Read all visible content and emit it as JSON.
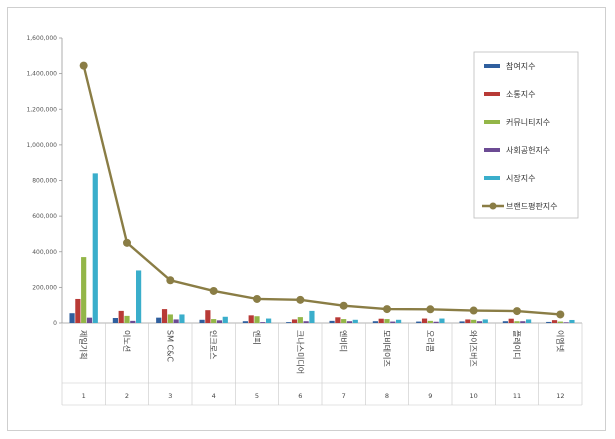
{
  "chart_data": {
    "type": "bar",
    "title": "",
    "xlabel": "",
    "ylabel": "",
    "ylim": [
      0,
      1600000
    ],
    "yticks": [
      "0",
      "200,000",
      "400,000",
      "600,000",
      "800,000",
      "1,000,000",
      "1,200,000",
      "1,400,000",
      "1,600,000"
    ],
    "categories": [
      "1",
      "2",
      "3",
      "4",
      "5",
      "6",
      "7",
      "8",
      "9",
      "10",
      "11",
      "12"
    ],
    "category_names": [
      "제일기획",
      "이노션",
      "SM C&C",
      "인크로스",
      "엔피",
      "크나스미디어",
      "엔비티",
      "모비데이즈",
      "오리콤",
      "와이즈버즈",
      "플레이디",
      "이엠넷"
    ],
    "legend_position": "right",
    "grid": false,
    "series": [
      {
        "name": "참여지수",
        "color": "#2f5f9e",
        "values": [
          55000,
          28000,
          30000,
          18000,
          10000,
          5000,
          12000,
          10000,
          8000,
          9000,
          10000,
          6000
        ]
      },
      {
        "name": "소통지수",
        "color": "#b83a36",
        "values": [
          135000,
          68000,
          78000,
          72000,
          43000,
          20000,
          32000,
          24000,
          25000,
          20000,
          24000,
          16000
        ]
      },
      {
        "name": "커뮤니티지수",
        "color": "#93b648",
        "values": [
          370000,
          40000,
          48000,
          22000,
          38000,
          33000,
          22000,
          22000,
          12000,
          18000,
          10000,
          8000
        ]
      },
      {
        "name": "사회공헌지수",
        "color": "#6c4b94",
        "values": [
          30000,
          12000,
          20000,
          15000,
          5000,
          10000,
          10000,
          8000,
          7000,
          10000,
          10000,
          4000
        ]
      },
      {
        "name": "시장지수",
        "color": "#3aaecb",
        "values": [
          840000,
          295000,
          48000,
          35000,
          25000,
          68000,
          18000,
          18000,
          25000,
          20000,
          20000,
          17000
        ]
      }
    ],
    "line_series": {
      "name": "브랜드평판지수",
      "color": "#8a7d45",
      "values": [
        1445000,
        450000,
        240000,
        180000,
        135000,
        130000,
        97000,
        78000,
        77000,
        70000,
        67000,
        48000
      ]
    }
  }
}
